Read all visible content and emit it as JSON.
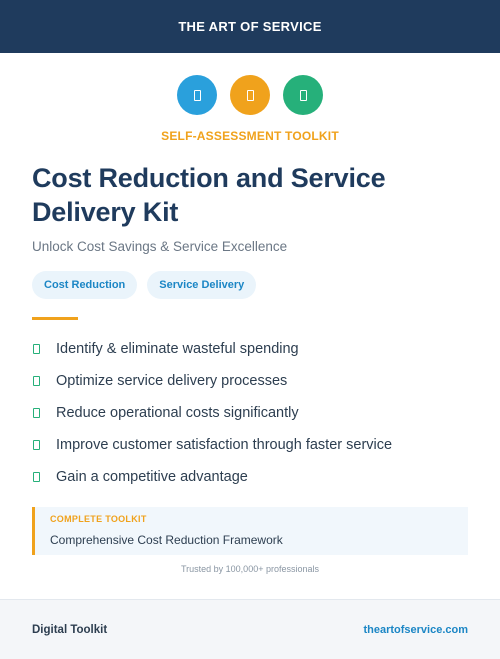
{
  "header": {
    "brand": "THE ART OF SERVICE"
  },
  "icons": [
    {
      "name": "document-icon",
      "color": "#2aa0dc"
    },
    {
      "name": "clipboard-icon",
      "color": "#f0a21c"
    },
    {
      "name": "checklist-icon",
      "color": "#26b07a"
    }
  ],
  "eyebrow": "SELF-ASSESSMENT TOOLKIT",
  "title": "Cost Reduction and Service Delivery Kit",
  "subtitle": "Unlock Cost Savings & Service Excellence",
  "tags": [
    "Cost Reduction",
    "Service Delivery"
  ],
  "features": [
    "Identify & eliminate wasteful spending",
    "Optimize service delivery processes",
    "Reduce operational costs significantly",
    "Improve customer satisfaction through faster service",
    "Gain a competitive advantage"
  ],
  "callout": {
    "label": "COMPLETE TOOLKIT",
    "value": "Comprehensive Cost Reduction Framework"
  },
  "trusted": "Trusted by 100,000+ professionals",
  "footer": {
    "left": "Digital Toolkit",
    "right": "theartofservice.com"
  }
}
